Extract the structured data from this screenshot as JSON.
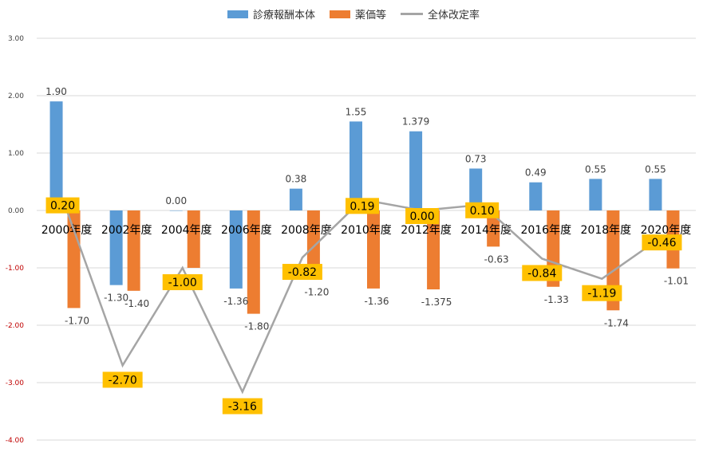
{
  "chart_data": {
    "type": "bar",
    "categories": [
      "2000年度",
      "2002年度",
      "2004年度",
      "2006年度",
      "2008年度",
      "2010年度",
      "2012年度",
      "2014年度",
      "2016年度",
      "2018年度",
      "2020年度"
    ],
    "series": [
      {
        "name": "診療報酬本体",
        "kind": "bar",
        "color": "#5b9bd5",
        "values": [
          1.9,
          -1.3,
          0.0,
          -1.36,
          0.38,
          1.55,
          1.379,
          0.73,
          0.49,
          0.55,
          0.55
        ],
        "labels": [
          "1.90",
          "-1.30",
          "0.00",
          "-1.36",
          "0.38",
          "1.55",
          "1.379",
          "0.73",
          "0.49",
          "0.55",
          "0.55"
        ]
      },
      {
        "name": "薬価等",
        "kind": "bar",
        "color": "#ed7d31",
        "values": [
          -1.7,
          -1.4,
          -1.0,
          -1.8,
          -1.2,
          -1.36,
          -1.375,
          -0.63,
          -1.33,
          -1.74,
          -1.01
        ],
        "labels": [
          "-1.70",
          "-1.40",
          "",
          "-1.80",
          "-1.20",
          "-1.36",
          "-1.375",
          "-0.63",
          "-1.33",
          "-1.74",
          "-1.01"
        ]
      },
      {
        "name": "全体改定率",
        "kind": "line",
        "color": "#a5a5a5",
        "values": [
          0.2,
          -2.7,
          -1.0,
          -3.16,
          -0.82,
          0.19,
          0.0,
          0.1,
          -0.84,
          -1.19,
          -0.46
        ],
        "labels": [
          "0.20",
          "-2.70",
          "-1.00",
          "-3.16",
          "-0.82",
          "0.19",
          "0.00",
          "0.10",
          "-0.84",
          "-1.19",
          "-0.46"
        ]
      }
    ],
    "ylim": [
      -4.0,
      3.0
    ],
    "yticks": [
      "3.00",
      "2.00",
      "1.00",
      "0.00",
      "-1.00",
      "-2.00",
      "-3.00",
      "-4.00"
    ],
    "ytick_values": [
      3,
      2,
      1,
      0,
      -1,
      -2,
      -3,
      -4
    ],
    "negative_tick_color": "#c00000",
    "label_box_color": "#ffc000",
    "grid": true,
    "legend_position": "top"
  }
}
